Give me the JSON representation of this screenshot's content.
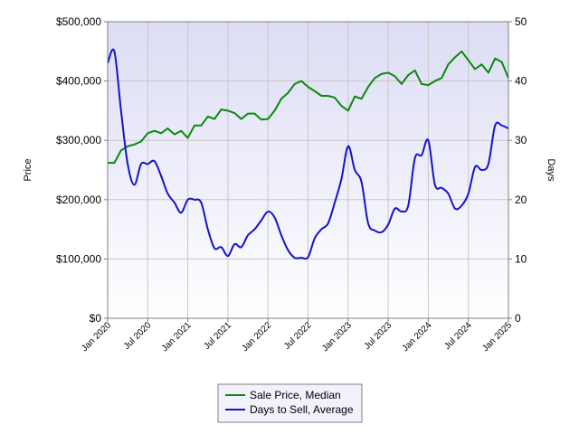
{
  "chart_data": {
    "type": "line",
    "title": "",
    "xlabel": "",
    "ylabel": "Price",
    "ylabel_right": "Days",
    "grid": true,
    "legend_position": "bottom-center",
    "background_gradient": [
      "#dcdcf5",
      "#ffffff"
    ],
    "x_tick_labels": [
      "Jan 2020",
      "Jul 2020",
      "Jan 2021",
      "Jul 2021",
      "Jan 2022",
      "Jul 2022",
      "Jan 2023",
      "Jul 2023",
      "Jan 2024",
      "Jul 2024",
      "Jan 2025"
    ],
    "y_left": {
      "range": [
        0,
        500000
      ],
      "ticks": [
        0,
        100000,
        200000,
        300000,
        400000,
        500000
      ],
      "tick_labels": [
        "$0",
        "$100,000",
        "$200,000",
        "$300,000",
        "$400,000",
        "$500,000"
      ]
    },
    "y_right": {
      "range": [
        0,
        50
      ],
      "ticks": [
        0,
        10,
        20,
        30,
        40,
        50
      ],
      "tick_labels": [
        "0",
        "10",
        "20",
        "30",
        "40",
        "50"
      ]
    },
    "x": [
      "2020-01",
      "2020-02",
      "2020-03",
      "2020-04",
      "2020-05",
      "2020-06",
      "2020-07",
      "2020-08",
      "2020-09",
      "2020-10",
      "2020-11",
      "2020-12",
      "2021-01",
      "2021-02",
      "2021-03",
      "2021-04",
      "2021-05",
      "2021-06",
      "2021-07",
      "2021-08",
      "2021-09",
      "2021-10",
      "2021-11",
      "2021-12",
      "2022-01",
      "2022-02",
      "2022-03",
      "2022-04",
      "2022-05",
      "2022-06",
      "2022-07",
      "2022-08",
      "2022-09",
      "2022-10",
      "2022-11",
      "2022-12",
      "2023-01",
      "2023-02",
      "2023-03",
      "2023-04",
      "2023-05",
      "2023-06",
      "2023-07",
      "2023-08",
      "2023-09",
      "2023-10",
      "2023-11",
      "2023-12",
      "2024-01",
      "2024-02",
      "2024-03",
      "2024-04",
      "2024-05",
      "2024-06",
      "2024-07",
      "2024-08",
      "2024-09",
      "2024-10",
      "2024-11",
      "2024-12",
      "2025-01"
    ],
    "series": [
      {
        "name": "Sale Price, Median",
        "axis": "left",
        "color": "#0a8a0a",
        "values": [
          262000,
          262000,
          283000,
          290000,
          293000,
          298000,
          312000,
          316000,
          312000,
          320000,
          310000,
          316000,
          304000,
          325000,
          325000,
          340000,
          336000,
          352000,
          350000,
          346000,
          336000,
          345000,
          345000,
          335000,
          336000,
          350000,
          370000,
          380000,
          395000,
          400000,
          390000,
          383000,
          375000,
          375000,
          372000,
          358000,
          350000,
          374000,
          370000,
          390000,
          405000,
          412000,
          414000,
          408000,
          395000,
          410000,
          418000,
          395000,
          393000,
          400000,
          405000,
          428000,
          440000,
          450000,
          435000,
          420000,
          428000,
          414000,
          438000,
          432000,
          405000
        ]
      },
      {
        "name": "Days to Sell, Average",
        "axis": "right",
        "color": "#1414c8",
        "values": [
          43,
          45,
          35,
          26,
          22.5,
          26,
          26,
          26.5,
          24,
          21,
          19.5,
          17.8,
          20,
          20,
          19.5,
          15,
          11.8,
          12,
          10.5,
          12.5,
          12,
          14,
          15,
          16.5,
          18,
          17,
          14,
          11.5,
          10.2,
          10.2,
          10.3,
          13.5,
          15,
          16,
          19.5,
          23.5,
          29,
          25,
          23,
          16,
          14.8,
          14.5,
          15.8,
          18.5,
          18,
          19,
          27,
          27.5,
          30,
          22.5,
          22,
          21,
          18.5,
          19,
          21,
          25.5,
          25,
          26,
          32.5,
          32.5,
          32
        ]
      }
    ]
  }
}
